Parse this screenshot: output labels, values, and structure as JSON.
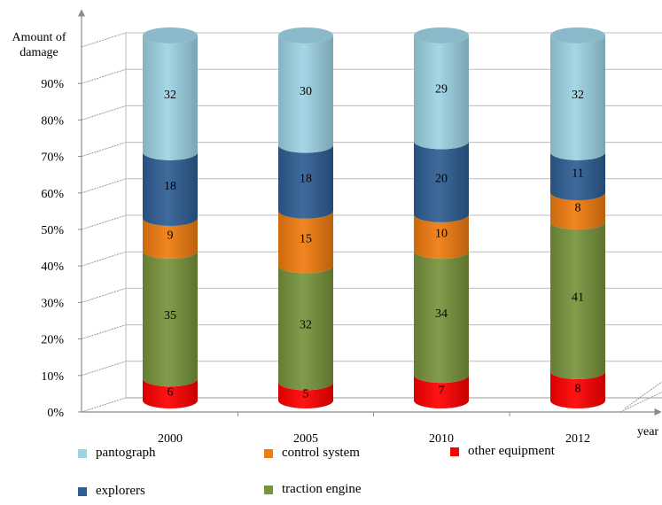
{
  "chart_data": {
    "type": "bar",
    "stacked": true,
    "style": "3d-cylinder",
    "ylabel": "Amount of damage",
    "xlabel": "year",
    "yticks": [
      "0%",
      "10%",
      "20%",
      "30%",
      "40%",
      "50%",
      "60%",
      "70%",
      "80%",
      "90%"
    ],
    "ylim": [
      0,
      100
    ],
    "categories": [
      "2000",
      "2005",
      "2010",
      "2012"
    ],
    "series": [
      {
        "name": "other equipment",
        "color": "#ff0000",
        "values": [
          6,
          5,
          7,
          8
        ]
      },
      {
        "name": "traction engine",
        "color": "#77933c",
        "values": [
          35,
          32,
          34,
          41
        ]
      },
      {
        "name": "control system",
        "color": "#f07c0f",
        "values": [
          9,
          15,
          10,
          8
        ]
      },
      {
        "name": "explorers",
        "color": "#2e5e93",
        "values": [
          18,
          18,
          20,
          11
        ]
      },
      {
        "name": "pantograph",
        "color": "#9dd3e4",
        "values": [
          32,
          30,
          29,
          32
        ]
      }
    ],
    "legend_order": [
      "pantograph",
      "control system",
      "other equipment",
      "explorers",
      "traction engine"
    ],
    "legend_position": "bottom",
    "grid": true
  }
}
